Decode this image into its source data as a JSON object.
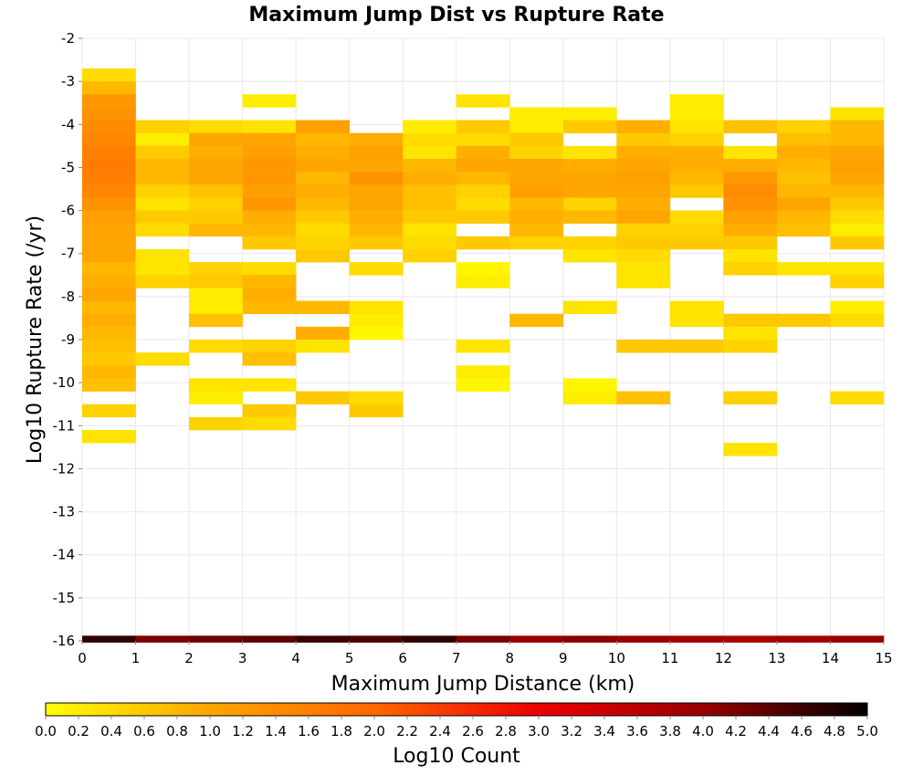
{
  "chart_data": {
    "type": "heatmap",
    "title": "Maximum Jump Dist vs Rupture Rate",
    "xlabel": "Maximum Jump Distance (km)",
    "ylabel": "Log10 Rupture Rate (/yr)",
    "xlim": [
      0,
      15
    ],
    "ylim": [
      -16,
      -2
    ],
    "x_ticks": [
      "0",
      "1",
      "2",
      "3",
      "4",
      "5",
      "6",
      "7",
      "8",
      "9",
      "10",
      "11",
      "12",
      "13",
      "14",
      "15"
    ],
    "y_ticks": [
      "-2",
      "-3",
      "-4",
      "-5",
      "-6",
      "-7",
      "-8",
      "-9",
      "-10",
      "-11",
      "-12",
      "-13",
      "-14",
      "-15",
      "-16"
    ],
    "x_bin_width": 1,
    "y_bin_height": 0.3,
    "colorbar": {
      "label": "Log10 Count",
      "range": [
        0.0,
        5.0
      ],
      "ticks": [
        "0.0",
        "0.2",
        "0.4",
        "0.6",
        "0.8",
        "1.0",
        "1.2",
        "1.4",
        "1.6",
        "1.8",
        "2.0",
        "2.2",
        "2.4",
        "2.6",
        "2.8",
        "3.0",
        "3.2",
        "3.4",
        "3.6",
        "3.8",
        "4.0",
        "4.2",
        "4.4",
        "4.6",
        "4.8",
        "5.0"
      ],
      "colors": [
        "#FFFF00",
        "#FFA500",
        "#FF6600",
        "#EE0000",
        "#990000",
        "#000000"
      ]
    },
    "cells": [
      [
        0,
        -2.85,
        0.4
      ],
      [
        0,
        -3.15,
        0.8
      ],
      [
        0,
        -3.45,
        1.2
      ],
      [
        0,
        -3.75,
        1.3
      ],
      [
        0,
        -4.05,
        1.4
      ],
      [
        0,
        -4.35,
        1.5
      ],
      [
        0,
        -4.65,
        1.6
      ],
      [
        0,
        -4.95,
        1.65
      ],
      [
        0,
        -5.25,
        1.6
      ],
      [
        0,
        -5.55,
        1.5
      ],
      [
        0,
        -5.85,
        1.3
      ],
      [
        0,
        -6.15,
        1.1
      ],
      [
        0,
        -6.45,
        1.0
      ],
      [
        0,
        -6.75,
        1.0
      ],
      [
        0,
        -7.05,
        1.0
      ],
      [
        0,
        -7.35,
        0.8
      ],
      [
        0,
        -7.65,
        0.9
      ],
      [
        0,
        -7.95,
        1.0
      ],
      [
        0,
        -8.25,
        0.8
      ],
      [
        0,
        -8.55,
        0.9
      ],
      [
        0,
        -8.85,
        0.8
      ],
      [
        0,
        -9.15,
        0.7
      ],
      [
        0,
        -9.45,
        0.6
      ],
      [
        0,
        -9.75,
        0.8
      ],
      [
        0,
        -10.05,
        0.7
      ],
      [
        0,
        -10.65,
        0.5
      ],
      [
        0,
        -11.25,
        0.3
      ],
      [
        1,
        -4.05,
        0.5
      ],
      [
        1,
        -4.35,
        0.2
      ],
      [
        1,
        -4.65,
        0.6
      ],
      [
        1,
        -4.95,
        0.8
      ],
      [
        1,
        -5.25,
        0.8
      ],
      [
        1,
        -5.55,
        0.5
      ],
      [
        1,
        -5.85,
        0.3
      ],
      [
        1,
        -6.15,
        0.6
      ],
      [
        1,
        -6.45,
        0.4
      ],
      [
        1,
        -7.05,
        0.3
      ],
      [
        1,
        -7.35,
        0.3
      ],
      [
        1,
        -7.65,
        0.5
      ],
      [
        1,
        -9.45,
        0.4
      ],
      [
        2,
        -4.05,
        0.4
      ],
      [
        2,
        -4.35,
        1.0
      ],
      [
        2,
        -4.65,
        0.9
      ],
      [
        2,
        -4.95,
        1.0
      ],
      [
        2,
        -5.25,
        1.0
      ],
      [
        2,
        -5.55,
        0.7
      ],
      [
        2,
        -5.85,
        0.5
      ],
      [
        2,
        -6.15,
        0.6
      ],
      [
        2,
        -6.45,
        0.8
      ],
      [
        2,
        -7.35,
        0.5
      ],
      [
        2,
        -7.65,
        0.6
      ],
      [
        2,
        -7.95,
        0.2
      ],
      [
        2,
        -8.25,
        0.2
      ],
      [
        2,
        -8.55,
        0.7
      ],
      [
        2,
        -9.15,
        0.4
      ],
      [
        2,
        -10.05,
        0.3
      ],
      [
        2,
        -10.35,
        0.2
      ],
      [
        2,
        -10.95,
        0.5
      ],
      [
        3,
        -3.45,
        0.2
      ],
      [
        3,
        -4.05,
        0.3
      ],
      [
        3,
        -4.35,
        1.0
      ],
      [
        3,
        -4.65,
        1.1
      ],
      [
        3,
        -4.95,
        1.2
      ],
      [
        3,
        -5.25,
        1.2
      ],
      [
        3,
        -5.55,
        1.1
      ],
      [
        3,
        -5.85,
        1.2
      ],
      [
        3,
        -6.15,
        0.9
      ],
      [
        3,
        -6.45,
        0.8
      ],
      [
        3,
        -6.75,
        0.6
      ],
      [
        3,
        -7.35,
        0.4
      ],
      [
        3,
        -7.65,
        0.8
      ],
      [
        3,
        -7.95,
        0.9
      ],
      [
        3,
        -8.25,
        0.8
      ],
      [
        3,
        -9.15,
        0.5
      ],
      [
        3,
        -9.45,
        0.7
      ],
      [
        3,
        -10.05,
        0.3
      ],
      [
        3,
        -10.65,
        0.6
      ],
      [
        3,
        -10.95,
        0.4
      ],
      [
        4,
        -4.05,
        1.1
      ],
      [
        4,
        -4.35,
        0.8
      ],
      [
        4,
        -4.65,
        0.9
      ],
      [
        4,
        -4.95,
        1.0
      ],
      [
        4,
        -5.25,
        0.8
      ],
      [
        4,
        -5.55,
        0.9
      ],
      [
        4,
        -5.85,
        0.8
      ],
      [
        4,
        -6.15,
        0.6
      ],
      [
        4,
        -6.45,
        0.4
      ],
      [
        4,
        -6.75,
        0.5
      ],
      [
        4,
        -7.05,
        0.6
      ],
      [
        4,
        -8.25,
        0.8
      ],
      [
        4,
        -8.85,
        0.9
      ],
      [
        4,
        -9.15,
        0.3
      ],
      [
        4,
        -10.35,
        0.6
      ],
      [
        5,
        -4.35,
        0.9
      ],
      [
        5,
        -4.65,
        1.1
      ],
      [
        5,
        -4.95,
        1.0
      ],
      [
        5,
        -5.25,
        1.3
      ],
      [
        5,
        -5.55,
        1.0
      ],
      [
        5,
        -5.85,
        1.0
      ],
      [
        5,
        -6.15,
        0.9
      ],
      [
        5,
        -6.45,
        0.8
      ],
      [
        5,
        -6.75,
        0.6
      ],
      [
        5,
        -7.35,
        0.4
      ],
      [
        5,
        -8.25,
        0.3
      ],
      [
        5,
        -8.55,
        0.2
      ],
      [
        5,
        -8.85,
        0.1
      ],
      [
        5,
        -10.35,
        0.4
      ],
      [
        5,
        -10.65,
        0.6
      ],
      [
        6,
        -4.05,
        0.2
      ],
      [
        6,
        -4.35,
        0.4
      ],
      [
        6,
        -4.65,
        0.3
      ],
      [
        6,
        -4.95,
        0.8
      ],
      [
        6,
        -5.25,
        0.9
      ],
      [
        6,
        -5.55,
        0.7
      ],
      [
        6,
        -5.85,
        0.7
      ],
      [
        6,
        -6.15,
        0.6
      ],
      [
        6,
        -6.45,
        0.3
      ],
      [
        6,
        -6.75,
        0.4
      ],
      [
        6,
        -7.05,
        0.5
      ],
      [
        7,
        -3.45,
        0.3
      ],
      [
        7,
        -4.05,
        0.6
      ],
      [
        7,
        -4.35,
        0.4
      ],
      [
        7,
        -4.65,
        0.9
      ],
      [
        7,
        -4.95,
        1.0
      ],
      [
        7,
        -5.25,
        0.8
      ],
      [
        7,
        -5.55,
        0.5
      ],
      [
        7,
        -5.85,
        0.4
      ],
      [
        7,
        -6.15,
        0.6
      ],
      [
        7,
        -6.75,
        0.6
      ],
      [
        7,
        -7.35,
        0.1
      ],
      [
        7,
        -7.65,
        0.2
      ],
      [
        7,
        -9.15,
        0.3
      ],
      [
        7,
        -9.75,
        0.2
      ],
      [
        7,
        -10.05,
        0.1
      ],
      [
        8,
        -3.75,
        0.2
      ],
      [
        8,
        -4.05,
        0.2
      ],
      [
        8,
        -4.35,
        0.6
      ],
      [
        8,
        -4.65,
        0.5
      ],
      [
        8,
        -4.95,
        1.0
      ],
      [
        8,
        -5.25,
        1.0
      ],
      [
        8,
        -5.55,
        1.1
      ],
      [
        8,
        -5.85,
        0.8
      ],
      [
        8,
        -6.15,
        0.9
      ],
      [
        8,
        -6.45,
        0.8
      ],
      [
        8,
        -6.75,
        0.5
      ],
      [
        8,
        -8.55,
        0.8
      ],
      [
        9,
        -3.75,
        0.2
      ],
      [
        9,
        -4.05,
        0.6
      ],
      [
        9,
        -4.65,
        0.3
      ],
      [
        9,
        -4.95,
        0.9
      ],
      [
        9,
        -5.25,
        1.0
      ],
      [
        9,
        -5.55,
        1.0
      ],
      [
        9,
        -5.85,
        0.5
      ],
      [
        9,
        -6.15,
        0.8
      ],
      [
        9,
        -6.75,
        0.5
      ],
      [
        9,
        -7.05,
        0.3
      ],
      [
        9,
        -8.25,
        0.3
      ],
      [
        9,
        -10.05,
        0.1
      ],
      [
        9,
        -10.35,
        0.2
      ],
      [
        10,
        -4.05,
        0.9
      ],
      [
        10,
        -4.35,
        0.6
      ],
      [
        10,
        -4.65,
        0.9
      ],
      [
        10,
        -4.95,
        1.0
      ],
      [
        10,
        -5.25,
        1.1
      ],
      [
        10,
        -5.55,
        1.0
      ],
      [
        10,
        -5.85,
        0.9
      ],
      [
        10,
        -6.15,
        1.0
      ],
      [
        10,
        -6.45,
        0.5
      ],
      [
        10,
        -6.75,
        0.6
      ],
      [
        10,
        -7.05,
        0.4
      ],
      [
        10,
        -7.35,
        0.3
      ],
      [
        10,
        -7.65,
        0.3
      ],
      [
        10,
        -9.15,
        0.6
      ],
      [
        10,
        -10.35,
        0.7
      ],
      [
        11,
        -3.45,
        0.2
      ],
      [
        11,
        -3.75,
        0.2
      ],
      [
        11,
        -4.05,
        0.3
      ],
      [
        11,
        -4.35,
        0.5
      ],
      [
        11,
        -4.65,
        0.9
      ],
      [
        11,
        -4.95,
        0.9
      ],
      [
        11,
        -5.25,
        0.8
      ],
      [
        11,
        -5.55,
        0.6
      ],
      [
        11,
        -6.15,
        0.4
      ],
      [
        11,
        -6.45,
        0.5
      ],
      [
        11,
        -6.75,
        0.6
      ],
      [
        11,
        -8.25,
        0.3
      ],
      [
        11,
        -8.55,
        0.3
      ],
      [
        11,
        -9.15,
        0.6
      ],
      [
        12,
        -4.05,
        0.7
      ],
      [
        12,
        -4.65,
        0.3
      ],
      [
        12,
        -4.95,
        0.9
      ],
      [
        12,
        -5.25,
        1.2
      ],
      [
        12,
        -5.55,
        1.4
      ],
      [
        12,
        -5.85,
        1.3
      ],
      [
        12,
        -6.15,
        1.1
      ],
      [
        12,
        -6.45,
        0.9
      ],
      [
        12,
        -6.75,
        0.6
      ],
      [
        12,
        -7.05,
        0.3
      ],
      [
        12,
        -7.35,
        0.5
      ],
      [
        12,
        -8.55,
        0.6
      ],
      [
        12,
        -8.85,
        0.3
      ],
      [
        12,
        -9.15,
        0.5
      ],
      [
        12,
        -10.35,
        0.5
      ],
      [
        12,
        -11.55,
        0.3
      ],
      [
        13,
        -4.05,
        0.5
      ],
      [
        13,
        -4.35,
        0.7
      ],
      [
        13,
        -4.65,
        0.9
      ],
      [
        13,
        -4.95,
        0.8
      ],
      [
        13,
        -5.25,
        0.7
      ],
      [
        13,
        -5.55,
        0.8
      ],
      [
        13,
        -5.85,
        1.0
      ],
      [
        13,
        -6.15,
        0.8
      ],
      [
        13,
        -6.45,
        0.7
      ],
      [
        13,
        -7.35,
        0.3
      ],
      [
        13,
        -8.55,
        0.6
      ],
      [
        14,
        -3.75,
        0.3
      ],
      [
        14,
        -4.05,
        0.8
      ],
      [
        14,
        -4.35,
        0.8
      ],
      [
        14,
        -4.65,
        1.0
      ],
      [
        14,
        -4.95,
        1.1
      ],
      [
        14,
        -5.25,
        1.0
      ],
      [
        14,
        -5.55,
        0.8
      ],
      [
        14,
        -5.85,
        0.6
      ],
      [
        14,
        -6.15,
        0.4
      ],
      [
        14,
        -6.45,
        0.2
      ],
      [
        14,
        -6.75,
        0.6
      ],
      [
        14,
        -7.35,
        0.3
      ],
      [
        14,
        -7.65,
        0.5
      ],
      [
        14,
        -8.25,
        0.2
      ],
      [
        14,
        -8.55,
        0.4
      ],
      [
        14,
        -10.35,
        0.4
      ]
    ],
    "bottom_row": {
      "y": -16,
      "values": [
        4.7,
        4.2,
        4.3,
        4.4,
        4.6,
        4.5,
        4.7,
        4.2,
        4.0,
        4.1,
        4.0,
        3.9,
        3.8,
        3.9,
        4.0
      ]
    }
  }
}
